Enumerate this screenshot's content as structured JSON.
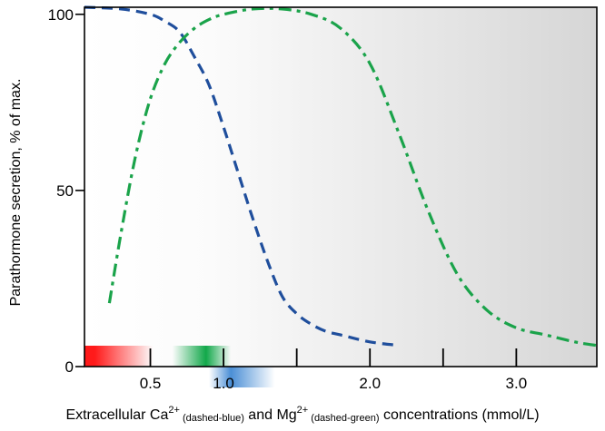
{
  "chart_data": {
    "type": "line",
    "title": "",
    "ylabel": "Parathormone secretion, % of max.",
    "xlabel": {
      "part1": "Extracellular Ca",
      "sup1": "2+",
      "sub1": " (dashed-blue)",
      "part2": " and Mg",
      "sup2": "2+",
      "sub2": " (dashed-green)",
      "part3": " concentrations (mmol/L)"
    },
    "xlim": [
      0.05,
      3.55
    ],
    "ylim": [
      0,
      102
    ],
    "x_ticks": [
      0.5,
      1.0,
      1.5,
      2.0,
      2.5,
      3.0
    ],
    "x_tick_labels": [
      {
        "value": 0.5,
        "label": "0.5"
      },
      {
        "value": 1.0,
        "label": "1.0"
      },
      {
        "value": 2.0,
        "label": "2.0"
      },
      {
        "value": 3.0,
        "label": "3.0"
      }
    ],
    "y_ticks": [
      {
        "value": 0,
        "label": "0"
      },
      {
        "value": 50,
        "label": "50"
      },
      {
        "value": 100,
        "label": "100"
      }
    ],
    "series": [
      {
        "name": "Ca2+ (dashed-blue)",
        "color": "#1f4e9c",
        "dash": "dashed",
        "x": [
          0.05,
          0.3,
          0.5,
          0.6,
          0.7,
          0.8,
          0.9,
          1.0,
          1.1,
          1.2,
          1.3,
          1.4,
          1.5,
          1.6,
          1.7,
          1.8,
          2.0,
          2.2
        ],
        "y": [
          102,
          101.5,
          100,
          98,
          95,
          88,
          80,
          68,
          55,
          42,
          30,
          20,
          15,
          12,
          10,
          9,
          7,
          6
        ]
      },
      {
        "name": "Mg2+ (dashed-green)",
        "color": "#1aa34a",
        "dash": "dashdot",
        "x": [
          0.22,
          0.3,
          0.4,
          0.5,
          0.6,
          0.7,
          0.8,
          0.9,
          1.0,
          1.2,
          1.4,
          1.6,
          1.8,
          2.0,
          2.2,
          2.4,
          2.6,
          2.8,
          3.0,
          3.2,
          3.4,
          3.55
        ],
        "y": [
          18,
          38,
          60,
          76,
          86,
          92,
          96,
          98.5,
          100,
          101.5,
          101.5,
          100,
          96,
          86,
          66,
          44,
          26,
          16,
          11,
          9,
          7,
          6
        ]
      }
    ],
    "range_bars": [
      {
        "name": "red",
        "color": "#ff1a1a",
        "x_start": 0.05,
        "x_peak": 0.12,
        "x_end": 0.52
      },
      {
        "name": "green",
        "color": "#12a84a",
        "x_start": 0.65,
        "x_peak": 0.88,
        "x_end": 1.05
      },
      {
        "name": "blue",
        "color": "#4b8fd6",
        "x_start": 0.9,
        "x_peak": 1.05,
        "x_end": 1.35
      }
    ]
  }
}
